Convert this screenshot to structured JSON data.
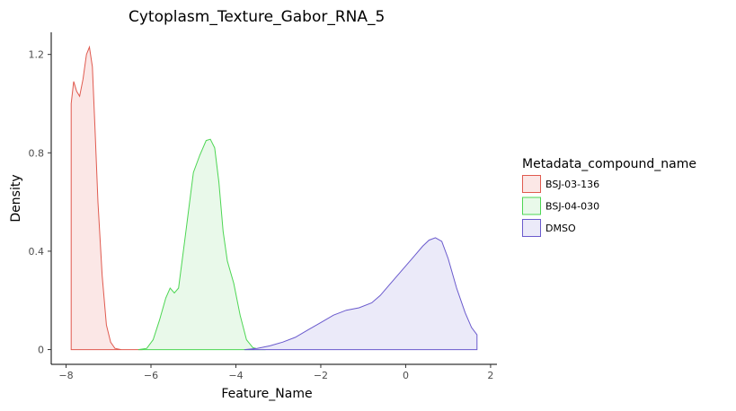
{
  "chart_data": {
    "type": "area",
    "title": "Cytoplasm_Texture_Gabor_RNA_5",
    "xlabel": "Feature_Name",
    "ylabel": "Density",
    "xlim": [
      -8.35,
      2.15
    ],
    "ylim": [
      -0.06,
      1.29
    ],
    "x_ticks": [
      -8,
      -6,
      -4,
      -2,
      0,
      2
    ],
    "x_tick_labels": [
      "−8",
      "−6",
      "−4",
      "−2",
      "0",
      "2"
    ],
    "y_ticks": [
      0,
      0.4,
      0.8,
      1.2
    ],
    "y_tick_labels": [
      "0",
      "0.4",
      "0.8",
      "1.2"
    ],
    "grid": false,
    "legend_title": "Metadata_compound_name",
    "legend_position": "right",
    "series": [
      {
        "name": "BSJ-03-136",
        "line_color": "#e05a4f",
        "fill_color": "#fbe7e6",
        "x": [
          -7.88,
          -7.88,
          -7.82,
          -7.75,
          -7.68,
          -7.6,
          -7.52,
          -7.45,
          -7.38,
          -7.32,
          -7.25,
          -7.15,
          -7.05,
          -6.95,
          -6.85,
          -6.7,
          -6.5,
          -6.2
        ],
        "y": [
          0.0,
          1.0,
          1.09,
          1.05,
          1.03,
          1.1,
          1.2,
          1.23,
          1.15,
          0.9,
          0.6,
          0.3,
          0.1,
          0.03,
          0.005,
          0.0,
          0.0,
          0.0
        ]
      },
      {
        "name": "BSJ-04-030",
        "line_color": "#4dd653",
        "fill_color": "#e9f9ea",
        "x": [
          -6.3,
          -6.1,
          -5.95,
          -5.8,
          -5.65,
          -5.55,
          -5.45,
          -5.35,
          -5.2,
          -5.0,
          -4.85,
          -4.7,
          -4.6,
          -4.5,
          -4.4,
          -4.3,
          -4.2,
          -4.05,
          -3.9,
          -3.75,
          -3.6,
          -3.45,
          -3.3
        ],
        "y": [
          0.0,
          0.005,
          0.04,
          0.12,
          0.21,
          0.25,
          0.23,
          0.25,
          0.45,
          0.72,
          0.79,
          0.85,
          0.855,
          0.82,
          0.68,
          0.48,
          0.36,
          0.27,
          0.14,
          0.04,
          0.008,
          0.001,
          0.0
        ]
      },
      {
        "name": "DMSO",
        "line_color": "#6a5acd",
        "fill_color": "#ebeaf9",
        "x": [
          -3.8,
          -3.5,
          -3.2,
          -2.9,
          -2.6,
          -2.3,
          -2.0,
          -1.7,
          -1.4,
          -1.1,
          -0.8,
          -0.6,
          -0.4,
          -0.2,
          0.0,
          0.2,
          0.4,
          0.55,
          0.7,
          0.85,
          1.0,
          1.2,
          1.4,
          1.55,
          1.68,
          1.68
        ],
        "y": [
          0.0,
          0.005,
          0.015,
          0.03,
          0.05,
          0.08,
          0.11,
          0.14,
          0.16,
          0.17,
          0.19,
          0.22,
          0.26,
          0.3,
          0.34,
          0.38,
          0.42,
          0.445,
          0.455,
          0.44,
          0.37,
          0.25,
          0.15,
          0.09,
          0.06,
          0.0
        ]
      }
    ]
  }
}
